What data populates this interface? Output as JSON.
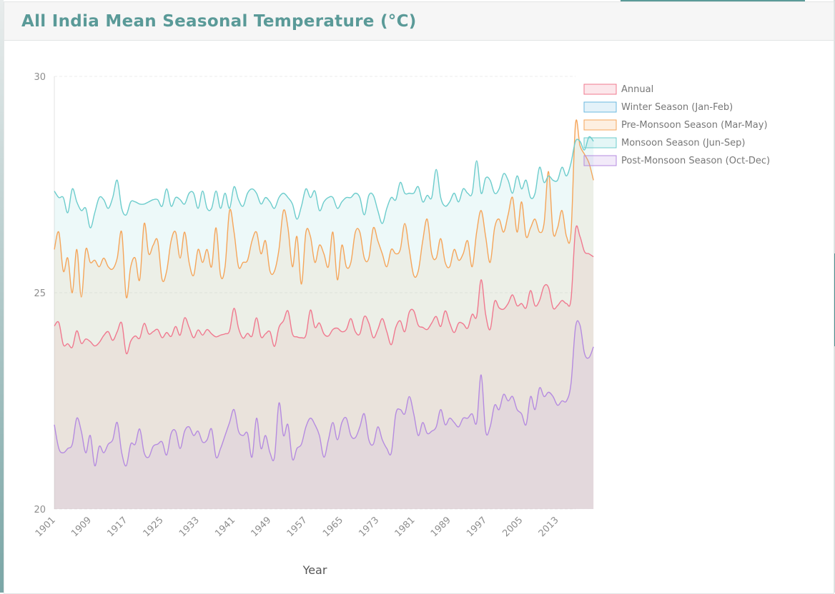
{
  "header": {
    "title": "All India Mean Seasonal Temperature (°C)"
  },
  "chart_data": {
    "type": "area",
    "title": "",
    "xlabel": "Year",
    "ylabel": "",
    "ylim": [
      20,
      30
    ],
    "yticks": [
      "20",
      "25",
      "30"
    ],
    "xticks": [
      "1901",
      "1909",
      "1917",
      "1925",
      "1933",
      "1941",
      "1949",
      "1957",
      "1965",
      "1973",
      "1981",
      "1989",
      "1997",
      "2005",
      "2013"
    ],
    "grid": true,
    "legend_position": "right",
    "x_start": 1901,
    "x_end": 2017,
    "series": [
      {
        "name": "Annual",
        "color": "#f0798f",
        "fill": "rgba(240,121,143,0.12)",
        "values": [
          24.23,
          24.31,
          23.8,
          23.82,
          23.74,
          24.12,
          23.83,
          23.93,
          23.87,
          23.77,
          23.85,
          24.01,
          24.1,
          23.9,
          24.1,
          24.3,
          23.6,
          23.88,
          24.0,
          23.95,
          24.29,
          24.05,
          24.1,
          24.15,
          23.96,
          24.08,
          23.99,
          24.22,
          24.02,
          24.42,
          24.2,
          23.96,
          24.14,
          24.02,
          24.15,
          24.05,
          23.98,
          24.02,
          24.05,
          24.12,
          24.64,
          24.18,
          23.95,
          24.06,
          24.0,
          24.42,
          23.98,
          24.05,
          24.1,
          23.76,
          24.2,
          24.35,
          24.58,
          24.05,
          23.98,
          23.96,
          24.02,
          24.6,
          24.2,
          24.3,
          24.05,
          24.0,
          24.15,
          24.18,
          24.1,
          24.15,
          24.4,
          24.1,
          24.05,
          24.45,
          24.3,
          23.96,
          24.15,
          24.4,
          24.1,
          23.8,
          24.2,
          24.35,
          24.1,
          24.55,
          24.58,
          24.25,
          24.2,
          24.15,
          24.3,
          24.45,
          24.22,
          24.58,
          24.3,
          24.08,
          24.3,
          24.28,
          24.18,
          24.5,
          24.45,
          25.3,
          24.5,
          24.15,
          24.8,
          24.65,
          24.62,
          24.75,
          24.95,
          24.7,
          24.75,
          24.65,
          25.05,
          24.7,
          24.82,
          25.15,
          25.12,
          24.65,
          24.7,
          24.82,
          24.75,
          24.85,
          26.45,
          26.3,
          25.95,
          25.9,
          25.83
        ]
      },
      {
        "name": "Winter Season (Jan-Feb)",
        "color": "#6bb8e0",
        "fill": "rgba(107,184,224,0.12)",
        "values": []
      },
      {
        "name": "Pre-Monsoon Season (Mar-May)",
        "color": "#f5a55a",
        "fill": "rgba(245,165,90,0.12)",
        "values": [
          26.0,
          26.4,
          25.5,
          25.8,
          25.0,
          26.0,
          24.9,
          26.0,
          25.7,
          25.75,
          25.6,
          25.8,
          25.6,
          25.55,
          25.8,
          26.4,
          24.9,
          25.6,
          25.8,
          25.3,
          26.6,
          25.9,
          26.1,
          26.2,
          25.3,
          25.5,
          26.2,
          26.4,
          25.8,
          26.4,
          25.7,
          25.4,
          26.0,
          25.7,
          26.0,
          25.6,
          26.5,
          25.4,
          25.6,
          26.9,
          26.4,
          25.6,
          25.7,
          25.75,
          26.2,
          26.4,
          25.9,
          26.2,
          25.5,
          25.5,
          26.0,
          26.9,
          26.5,
          25.6,
          26.3,
          25.2,
          26.4,
          26.3,
          25.7,
          26.1,
          25.9,
          25.6,
          26.4,
          25.3,
          26.1,
          25.6,
          25.7,
          26.4,
          26.4,
          25.8,
          25.8,
          26.5,
          26.2,
          25.9,
          25.6,
          26.0,
          25.9,
          26.0,
          26.6,
          26.0,
          25.4,
          25.5,
          26.2,
          26.7,
          25.9,
          25.8,
          26.25,
          25.7,
          25.6,
          26.0,
          25.75,
          25.9,
          26.2,
          25.6,
          26.4,
          26.9,
          26.3,
          25.7,
          26.5,
          26.7,
          26.4,
          26.8,
          27.2,
          26.4,
          27.1,
          26.3,
          26.5,
          26.7,
          26.4,
          26.6,
          27.8,
          26.4,
          26.5,
          26.9,
          26.3,
          26.4,
          28.9,
          28.4,
          28.2,
          28.0,
          27.6
        ]
      },
      {
        "name": "Monsoon Season (Jun-Sep)",
        "color": "#6ccccc",
        "fill": "rgba(108,204,204,0.12)",
        "values": [
          27.35,
          27.2,
          27.2,
          26.85,
          27.4,
          27.1,
          26.9,
          26.95,
          26.5,
          26.85,
          27.2,
          27.15,
          26.95,
          27.2,
          27.6,
          26.95,
          26.8,
          27.1,
          27.1,
          27.05,
          27.05,
          27.1,
          27.15,
          27.15,
          27.0,
          27.4,
          27.0,
          27.2,
          27.15,
          27.05,
          27.3,
          27.3,
          26.95,
          27.35,
          26.95,
          26.95,
          27.35,
          26.95,
          27.3,
          26.95,
          27.45,
          27.15,
          27.0,
          27.3,
          27.4,
          27.3,
          27.05,
          27.2,
          27.1,
          26.95,
          27.2,
          27.3,
          27.2,
          27.05,
          26.7,
          27.0,
          27.4,
          27.2,
          27.35,
          26.9,
          27.1,
          27.2,
          27.2,
          26.95,
          27.1,
          27.2,
          27.2,
          27.3,
          27.2,
          26.8,
          27.25,
          27.25,
          26.9,
          26.6,
          26.95,
          27.2,
          27.15,
          27.55,
          27.3,
          27.3,
          27.3,
          27.45,
          27.1,
          27.25,
          27.2,
          27.85,
          27.2,
          27.0,
          27.1,
          27.3,
          27.1,
          27.4,
          27.3,
          27.3,
          28.05,
          27.3,
          27.65,
          27.6,
          27.3,
          27.4,
          27.75,
          27.6,
          27.3,
          27.7,
          27.4,
          27.6,
          27.2,
          27.3,
          27.9,
          27.55,
          27.7,
          27.6,
          27.6,
          27.9,
          27.7,
          28.0,
          28.5,
          28.5,
          28.3,
          28.6,
          28.5
        ]
      },
      {
        "name": "Post-Monsoon Season (Oct-Dec)",
        "color": "#b58be0",
        "fill": "rgba(181,139,224,0.12)",
        "values": [
          21.95,
          21.4,
          21.3,
          21.4,
          21.5,
          22.1,
          21.8,
          21.3,
          21.7,
          21.0,
          21.45,
          21.3,
          21.5,
          21.6,
          22.0,
          21.3,
          21.0,
          21.5,
          21.5,
          21.85,
          21.3,
          21.2,
          21.45,
          21.5,
          21.55,
          21.25,
          21.75,
          21.8,
          21.4,
          21.8,
          21.9,
          21.7,
          21.8,
          21.55,
          21.6,
          21.85,
          21.2,
          21.4,
          21.7,
          22.0,
          22.3,
          21.8,
          21.7,
          21.75,
          21.2,
          22.1,
          21.4,
          21.7,
          21.3,
          21.2,
          22.45,
          21.7,
          21.95,
          21.15,
          21.4,
          21.5,
          21.9,
          22.1,
          21.95,
          21.7,
          21.2,
          21.6,
          22.0,
          21.6,
          22.0,
          22.1,
          21.7,
          21.65,
          21.9,
          22.2,
          21.6,
          21.5,
          21.9,
          21.6,
          21.4,
          21.3,
          22.2,
          22.3,
          22.2,
          22.6,
          22.2,
          21.7,
          22.0,
          21.75,
          21.8,
          21.9,
          22.3,
          21.95,
          22.1,
          22.0,
          21.9,
          22.1,
          22.1,
          22.2,
          22.0,
          23.1,
          21.8,
          21.9,
          22.4,
          22.3,
          22.65,
          22.5,
          22.6,
          22.3,
          22.2,
          21.95,
          22.6,
          22.3,
          22.8,
          22.6,
          22.7,
          22.6,
          22.4,
          22.5,
          22.5,
          22.9,
          24.2,
          24.25,
          23.6,
          23.5,
          23.75
        ]
      }
    ]
  }
}
